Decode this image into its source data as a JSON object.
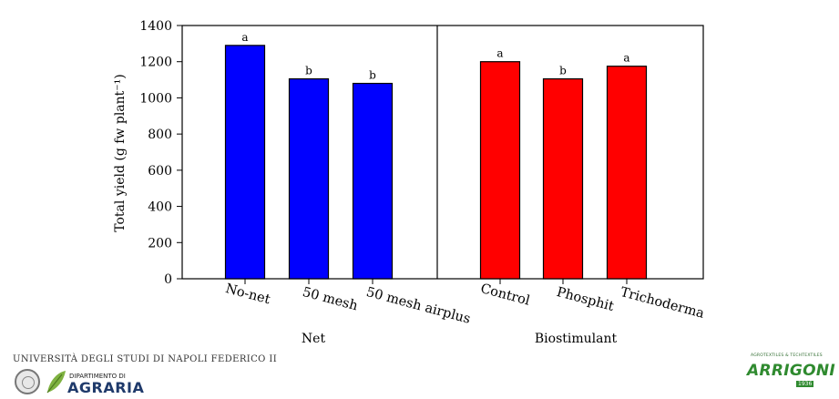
{
  "chart_data": {
    "type": "bar",
    "ylabel": "Total yield (g fw plant⁻¹)",
    "ylim": [
      0,
      1400
    ],
    "yticks": [
      0,
      200,
      400,
      600,
      800,
      1000,
      1200,
      1400
    ],
    "panels": [
      {
        "group_label": "Net",
        "color": "#0000ff",
        "categories": [
          "No-net",
          "50 mesh",
          "50 mesh airplus"
        ],
        "values": [
          1290,
          1105,
          1080
        ],
        "letters": [
          "a",
          "b",
          "b"
        ]
      },
      {
        "group_label": "Biostimulant",
        "color": "#ff0000",
        "categories": [
          "Control",
          "Phosphit",
          "Trichoderma"
        ],
        "values": [
          1200,
          1105,
          1175
        ],
        "letters": [
          "a",
          "b",
          "a"
        ]
      }
    ],
    "grid": false,
    "legend": "none"
  },
  "logos": {
    "university": "UNIVERSITÀ DEGLI STUDI DI NAPOLI FEDERICO II",
    "department_small": "DIPARTIMENTO DI",
    "department": "AGRARIA",
    "company_tagline": "AGROTEXTILES & TECHTEXTILES",
    "company": "ARRIGONI",
    "company_year": "1936"
  }
}
